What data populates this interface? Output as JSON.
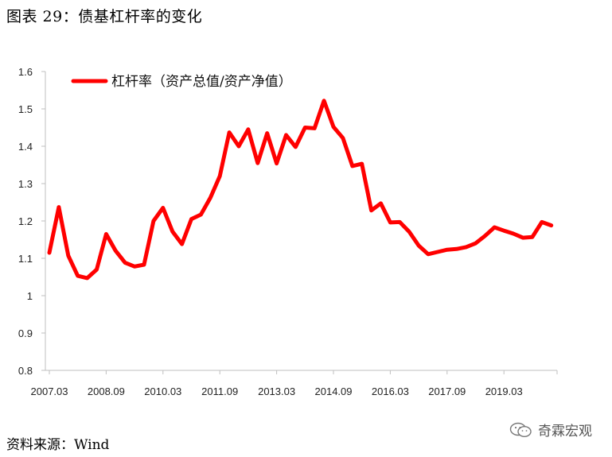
{
  "title": "图表 29：债基杠杆率的变化",
  "source": "资料来源：Wind",
  "watermark": "奇霖宏观",
  "colors": {
    "series": "#ff0000",
    "axis": "#bfbfbf"
  },
  "chart_data": {
    "type": "line",
    "title": "",
    "xlabel": "",
    "ylabel": "",
    "ylim": [
      0.8,
      1.6
    ],
    "yticks": [
      0.8,
      0.9,
      1,
      1.1,
      1.2,
      1.3,
      1.4,
      1.5,
      1.6
    ],
    "ytick_labels": [
      "0.8",
      "0.9",
      "1",
      "1.1",
      "1.2",
      "1.3",
      "1.4",
      "1.5",
      "1.6"
    ],
    "xtick_labels": [
      "2007.03",
      "2008.09",
      "2010.03",
      "2011.09",
      "2013.03",
      "2014.09",
      "2016.03",
      "2017.09",
      "2019.03"
    ],
    "grid": false,
    "legend_position": "top-left",
    "series": [
      {
        "name": "杠杆率（资产总值/资产净值）",
        "color": "#ff0000",
        "x": [
          "2007.03",
          "2007.06",
          "2007.09",
          "2007.12",
          "2008.03",
          "2008.06",
          "2008.09",
          "2008.12",
          "2009.03",
          "2009.06",
          "2009.09",
          "2009.12",
          "2010.03",
          "2010.06",
          "2010.09",
          "2010.12",
          "2011.03",
          "2011.06",
          "2011.09",
          "2011.12",
          "2012.03",
          "2012.06",
          "2012.09",
          "2012.12",
          "2013.03",
          "2013.06",
          "2013.09",
          "2013.12",
          "2014.03",
          "2014.06",
          "2014.09",
          "2014.12",
          "2015.03",
          "2015.06",
          "2015.09",
          "2015.12",
          "2016.03",
          "2016.06",
          "2016.09",
          "2016.12",
          "2017.03",
          "2017.06",
          "2017.09",
          "2017.12",
          "2018.03",
          "2018.06",
          "2018.09",
          "2018.12",
          "2019.03",
          "2019.06",
          "2019.09",
          "2019.12",
          "2020.03",
          "2020.06"
        ],
        "values": [
          1.115,
          1.237,
          1.107,
          1.053,
          1.047,
          1.07,
          1.165,
          1.12,
          1.088,
          1.078,
          1.083,
          1.2,
          1.235,
          1.172,
          1.138,
          1.205,
          1.217,
          1.262,
          1.32,
          1.437,
          1.4,
          1.445,
          1.355,
          1.435,
          1.354,
          1.43,
          1.398,
          1.45,
          1.448,
          1.522,
          1.452,
          1.422,
          1.347,
          1.353,
          1.228,
          1.247,
          1.196,
          1.197,
          1.171,
          1.134,
          1.111,
          1.117,
          1.123,
          1.125,
          1.13,
          1.14,
          1.16,
          1.183,
          1.174,
          1.166,
          1.155,
          1.157,
          1.197,
          1.188
        ]
      }
    ]
  }
}
